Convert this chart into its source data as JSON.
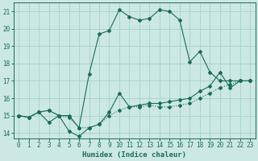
{
  "xlabel": "Humidex (Indice chaleur)",
  "ylabel": "",
  "background_color": "#cce8e4",
  "grid_color": "#aad4cc",
  "line_color": "#1a6b5a",
  "xlim": [
    -0.5,
    23.5
  ],
  "ylim": [
    13.7,
    21.5
  ],
  "xticks": [
    0,
    1,
    2,
    3,
    4,
    5,
    6,
    7,
    8,
    9,
    10,
    11,
    12,
    13,
    14,
    15,
    16,
    17,
    18,
    19,
    20,
    21,
    22,
    23
  ],
  "yticks": [
    14,
    15,
    16,
    17,
    18,
    19,
    20,
    21
  ],
  "line1_x": [
    0,
    1,
    2,
    3,
    4,
    5,
    6,
    7,
    8,
    9,
    10,
    11,
    12,
    13,
    14,
    15,
    16,
    17,
    18,
    19,
    20,
    21,
    22,
    23
  ],
  "line1_y": [
    15.0,
    14.9,
    15.2,
    15.3,
    15.0,
    14.9,
    14.3,
    14.3,
    14.5,
    15.0,
    15.3,
    15.5,
    15.5,
    15.6,
    15.5,
    15.5,
    15.6,
    15.7,
    16.0,
    16.3,
    16.6,
    16.8,
    17.0,
    17.0
  ],
  "line2_x": [
    0,
    1,
    2,
    3,
    4,
    5,
    6,
    7,
    8,
    9,
    10,
    11,
    12,
    13,
    14,
    15,
    16,
    17,
    18,
    19,
    20,
    21,
    22,
    23
  ],
  "line2_y": [
    15.0,
    14.9,
    15.2,
    14.6,
    15.0,
    14.1,
    13.8,
    14.3,
    14.5,
    15.2,
    16.3,
    15.5,
    15.6,
    15.7,
    15.7,
    15.8,
    15.9,
    16.0,
    16.4,
    16.7,
    17.5,
    16.6,
    17.0,
    17.0
  ],
  "line3_x": [
    0,
    1,
    2,
    3,
    4,
    5,
    6,
    7,
    8,
    9,
    10,
    11,
    12,
    13,
    14,
    15,
    16,
    17,
    18,
    19,
    20,
    21,
    22,
    23
  ],
  "line3_y": [
    15.0,
    14.9,
    15.2,
    15.3,
    15.0,
    15.0,
    14.3,
    17.4,
    19.7,
    19.9,
    21.1,
    20.7,
    20.5,
    20.6,
    21.1,
    21.0,
    20.5,
    18.1,
    18.7,
    17.5,
    17.0,
    17.0,
    17.0,
    17.0
  ],
  "line1_style": "dotted",
  "line2_style": "solid",
  "line3_style": "solid"
}
